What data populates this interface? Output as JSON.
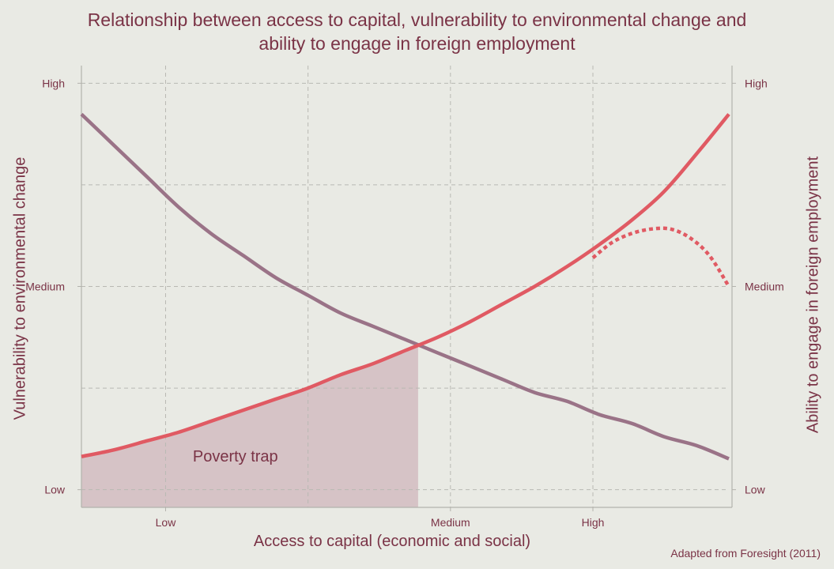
{
  "chart_data": {
    "type": "line",
    "title_line1": "Relationship between access to capital, vulnerability to environmental change and",
    "title_line2": "ability to engage in foreign employment",
    "xlabel": "Access to capital (economic and social)",
    "ylabel_left": "Vulnerability to environmental change",
    "ylabel_right": "Ability to engage in foreign employment",
    "source": "Adapted from Foresight (2011)",
    "x_tick_labels": [
      {
        "label": "Low",
        "x": 0.13
      },
      {
        "label": "Medium",
        "x": 0.57
      },
      {
        "label": "High",
        "x": 0.79
      }
    ],
    "y_tick_labels_left": [
      {
        "label": "High",
        "y": 0.96
      },
      {
        "label": "Medium",
        "y": 0.5
      },
      {
        "label": "Low",
        "y": 0.04
      }
    ],
    "y_tick_labels_right": [
      {
        "label": "High",
        "y": 0.96
      },
      {
        "label": "Medium",
        "y": 0.5
      },
      {
        "label": "Low",
        "y": 0.04
      }
    ],
    "x_gridlines": [
      0.13,
      0.35,
      0.57,
      0.79
    ],
    "y_gridlines": [
      0.04,
      0.27,
      0.5,
      0.73,
      0.96
    ],
    "xlim": [
      0,
      1
    ],
    "ylim": [
      0,
      1
    ],
    "grid": true,
    "series": [
      {
        "role": "vulnerability",
        "color": "#9a7387",
        "style": "solid",
        "x": [
          0.0,
          0.05,
          0.1,
          0.15,
          0.2,
          0.25,
          0.3,
          0.35,
          0.4,
          0.45,
          0.5,
          0.55,
          0.6,
          0.65,
          0.7,
          0.75,
          0.8,
          0.85,
          0.9,
          0.95,
          1.0
        ],
        "y": [
          0.89,
          0.82,
          0.75,
          0.68,
          0.62,
          0.57,
          0.52,
          0.48,
          0.44,
          0.41,
          0.38,
          0.35,
          0.32,
          0.29,
          0.26,
          0.24,
          0.21,
          0.19,
          0.16,
          0.14,
          0.11
        ]
      },
      {
        "role": "ability",
        "color": "#e05a63",
        "style": "solid",
        "x": [
          0.0,
          0.05,
          0.1,
          0.15,
          0.2,
          0.25,
          0.3,
          0.35,
          0.4,
          0.45,
          0.5,
          0.55,
          0.6,
          0.65,
          0.7,
          0.75,
          0.8,
          0.85,
          0.9,
          0.95,
          1.0
        ],
        "y": [
          0.115,
          0.13,
          0.15,
          0.17,
          0.195,
          0.22,
          0.245,
          0.27,
          0.3,
          0.325,
          0.355,
          0.385,
          0.42,
          0.46,
          0.5,
          0.545,
          0.595,
          0.65,
          0.715,
          0.8,
          0.89
        ]
      },
      {
        "role": "ability-alternative",
        "color": "#e05a63",
        "style": "dotted",
        "x": [
          0.79,
          0.82,
          0.85,
          0.88,
          0.91,
          0.94,
          0.97,
          1.0
        ],
        "y": [
          0.565,
          0.6,
          0.62,
          0.63,
          0.63,
          0.61,
          0.57,
          0.5
        ]
      }
    ],
    "shaded_region": {
      "label": "Poverty trap",
      "color": "#d6c3c6",
      "x_end": 0.52,
      "under_series": "ability"
    }
  }
}
